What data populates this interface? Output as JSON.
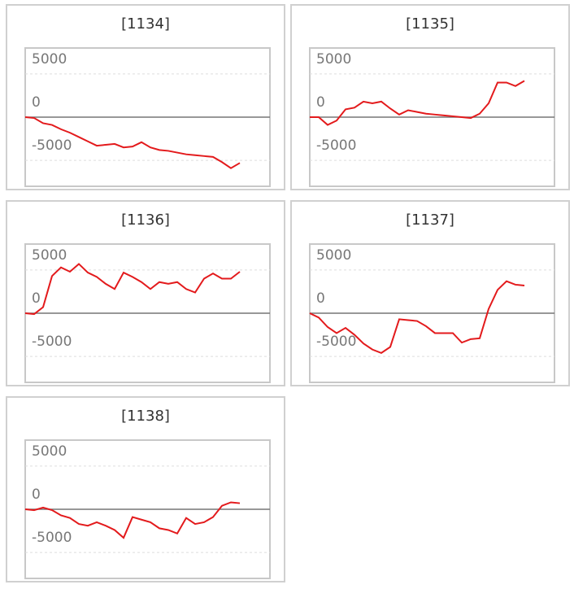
{
  "chart_data": [
    {
      "type": "line",
      "title": "[1134]",
      "color": "#e31a1c",
      "ylim": [
        -8000,
        8000
      ],
      "yticks": [
        5000,
        0,
        -5000
      ],
      "values": [
        0,
        -100,
        -700,
        -900,
        -1400,
        -1800,
        -2300,
        -2800,
        -3300,
        -3200,
        -3100,
        -3500,
        -3400,
        -2900,
        -3500,
        -3800,
        -3900,
        -4100,
        -4300,
        -4400,
        -4500,
        -4600,
        -5200,
        -5900,
        -5300
      ]
    },
    {
      "type": "line",
      "title": "[1135]",
      "color": "#e31a1c",
      "ylim": [
        -8000,
        8000
      ],
      "yticks": [
        5000,
        0,
        -5000
      ],
      "values": [
        0,
        0,
        -900,
        -400,
        900,
        1100,
        1800,
        1600,
        1800,
        1000,
        300,
        800,
        600,
        400,
        300,
        200,
        100,
        0,
        -100,
        400,
        1600,
        4000,
        4000,
        3600,
        4200
      ]
    },
    {
      "type": "line",
      "title": "[1136]",
      "color": "#e31a1c",
      "ylim": [
        -8000,
        8000
      ],
      "yticks": [
        5000,
        0,
        -5000
      ],
      "values": [
        0,
        -100,
        700,
        4300,
        5300,
        4800,
        5700,
        4700,
        4200,
        3400,
        2800,
        4700,
        4200,
        3600,
        2800,
        3600,
        3400,
        3600,
        2800,
        2400,
        4000,
        4600,
        4000,
        4000,
        4800
      ]
    },
    {
      "type": "line",
      "title": "[1137]",
      "color": "#e31a1c",
      "ylim": [
        -8000,
        8000
      ],
      "yticks": [
        5000,
        0,
        -5000
      ],
      "values": [
        0,
        -500,
        -1600,
        -2300,
        -1700,
        -2500,
        -3500,
        -4200,
        -4600,
        -3900,
        -700,
        -800,
        -900,
        -1500,
        -2300,
        -2300,
        -2300,
        -3400,
        -3000,
        -2900,
        500,
        2700,
        3700,
        3300,
        3200
      ]
    },
    {
      "type": "line",
      "title": "[1138]",
      "color": "#e31a1c",
      "ylim": [
        -8000,
        8000
      ],
      "yticks": [
        5000,
        0,
        -5000
      ],
      "values": [
        0,
        -100,
        200,
        -100,
        -700,
        -1000,
        -1700,
        -1900,
        -1500,
        -1900,
        -2400,
        -3300,
        -900,
        -1200,
        -1500,
        -2200,
        -2400,
        -2800,
        -1000,
        -1700,
        -1500,
        -900,
        400,
        800,
        700
      ]
    }
  ]
}
